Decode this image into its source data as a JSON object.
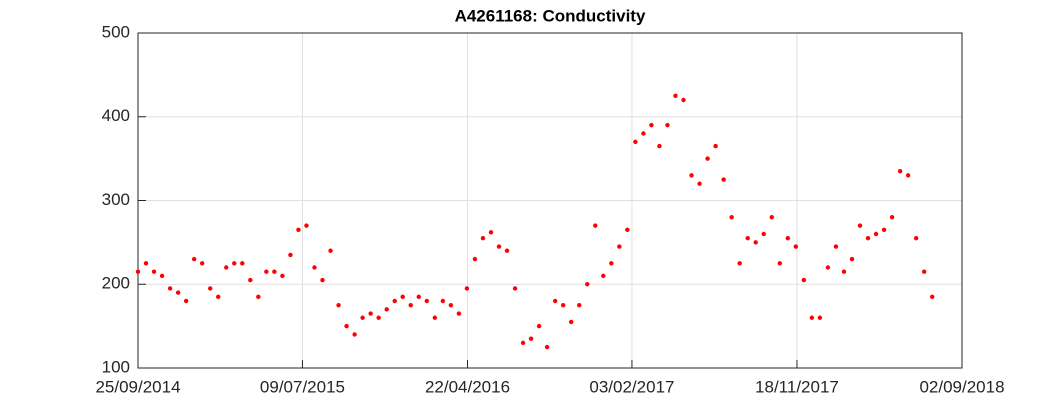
{
  "chart_data": {
    "type": "scatter",
    "title": "A4261168: Conductivity",
    "color": "#ff0000",
    "grid": true,
    "x": [
      "25/09/2014",
      "09/10/2014",
      "23/10/2014",
      "06/11/2014",
      "20/11/2014",
      "04/12/2014",
      "18/12/2014",
      "01/01/2015",
      "15/01/2015",
      "29/01/2015",
      "12/02/2015",
      "26/02/2015",
      "12/03/2015",
      "26/03/2015",
      "09/04/2015",
      "23/04/2015",
      "07/05/2015",
      "21/05/2015",
      "04/06/2015",
      "18/06/2015",
      "02/07/2015",
      "16/07/2015",
      "30/07/2015",
      "13/08/2015",
      "27/08/2015",
      "10/09/2015",
      "24/09/2015",
      "08/10/2015",
      "22/10/2015",
      "05/11/2015",
      "19/11/2015",
      "03/12/2015",
      "17/12/2015",
      "31/12/2015",
      "14/01/2016",
      "28/01/2016",
      "11/02/2016",
      "25/02/2016",
      "10/03/2016",
      "24/03/2016",
      "07/04/2016",
      "21/04/2016",
      "05/05/2016",
      "19/05/2016",
      "02/06/2016",
      "16/06/2016",
      "30/06/2016",
      "14/07/2016",
      "28/07/2016",
      "11/08/2016",
      "25/08/2016",
      "08/09/2016",
      "22/09/2016",
      "06/10/2016",
      "20/10/2016",
      "03/11/2016",
      "17/11/2016",
      "01/12/2016",
      "15/12/2016",
      "29/12/2016",
      "12/01/2017",
      "26/01/2017",
      "09/02/2017",
      "23/02/2017",
      "09/03/2017",
      "23/03/2017",
      "06/04/2017",
      "20/04/2017",
      "04/05/2017",
      "18/05/2017",
      "01/06/2017",
      "15/06/2017",
      "29/06/2017",
      "13/07/2017",
      "27/07/2017",
      "10/08/2017",
      "24/08/2017",
      "07/09/2017",
      "21/09/2017",
      "05/10/2017",
      "19/10/2017",
      "02/11/2017",
      "16/11/2017",
      "30/11/2017",
      "14/12/2017",
      "28/12/2017",
      "11/01/2018",
      "25/01/2018",
      "08/02/2018",
      "22/02/2018",
      "08/03/2018",
      "22/03/2018",
      "05/04/2018",
      "19/04/2018",
      "03/05/2018",
      "17/05/2018",
      "31/05/2018",
      "14/06/2018",
      "28/06/2018",
      "12/07/2018"
    ],
    "values": [
      215,
      225,
      215,
      210,
      195,
      190,
      180,
      230,
      225,
      195,
      185,
      220,
      225,
      225,
      205,
      185,
      215,
      215,
      210,
      235,
      265,
      270,
      220,
      205,
      240,
      175,
      150,
      140,
      160,
      165,
      160,
      170,
      180,
      185,
      175,
      185,
      180,
      160,
      180,
      175,
      165,
      195,
      230,
      255,
      262,
      245,
      240,
      195,
      130,
      135,
      150,
      125,
      180,
      175,
      155,
      175,
      200,
      270,
      210,
      225,
      245,
      265,
      370,
      380,
      390,
      365,
      390,
      425,
      420,
      330,
      320,
      350,
      365,
      325,
      280,
      225,
      255,
      250,
      260,
      280,
      225,
      255,
      245,
      205,
      160,
      160,
      220,
      245,
      215,
      230,
      270,
      255,
      260,
      265,
      280,
      335,
      330,
      255,
      215,
      185
    ],
    "xlim": [
      "25/09/2014",
      "02/09/2018"
    ],
    "xticks": [
      "25/09/2014",
      "09/07/2015",
      "22/04/2016",
      "03/02/2017",
      "18/11/2017",
      "02/09/2018"
    ],
    "ylim": [
      100,
      500
    ],
    "yticks": [
      100,
      200,
      300,
      400,
      500
    ]
  }
}
